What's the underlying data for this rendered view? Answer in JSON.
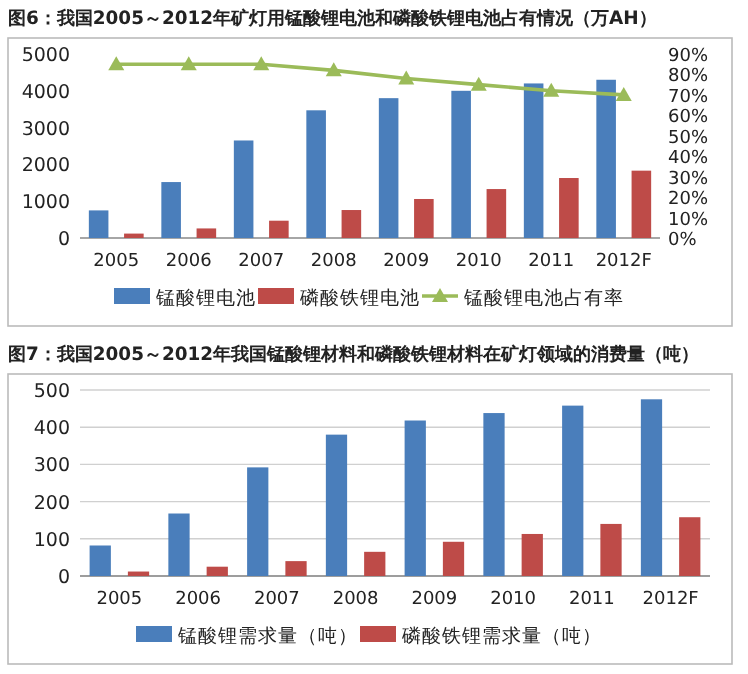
{
  "chart_data": [
    {
      "type": "bar",
      "title": "图6：我国2005～2012年矿灯用锰酸锂电池和磷酸铁锂电池占有情况（万AH）",
      "categories": [
        "2005",
        "2006",
        "2007",
        "2008",
        "2009",
        "2010",
        "2011",
        "2012F"
      ],
      "series": [
        {
          "name": "锰酸锂电池",
          "color": "#4a7ebb",
          "values": [
            750,
            1520,
            2650,
            3470,
            3800,
            4000,
            4200,
            4300
          ]
        },
        {
          "name": "磷酸铁锂电池",
          "color": "#be4b48",
          "values": [
            120,
            260,
            470,
            760,
            1060,
            1330,
            1630,
            1830
          ]
        },
        {
          "name": "锰酸锂电池占有率",
          "type": "line",
          "axis": "y2",
          "color": "#9bbb59",
          "values": [
            85,
            85,
            85,
            82,
            78,
            75,
            72,
            70
          ]
        }
      ],
      "ylim": [
        0,
        5000
      ],
      "yticks": [
        0,
        1000,
        2000,
        3000,
        4000,
        5000
      ],
      "y2lim": [
        0,
        90
      ],
      "y2ticks": [
        {
          "value": 0,
          "label": "0%"
        },
        {
          "value": 10,
          "label": "10%"
        },
        {
          "value": 20,
          "label": "20%"
        },
        {
          "value": 30,
          "label": "30%"
        },
        {
          "value": 40,
          "label": "40%"
        },
        {
          "value": 50,
          "label": "50%"
        },
        {
          "value": 60,
          "label": "60%"
        },
        {
          "value": 70,
          "label": "70%"
        },
        {
          "value": 80,
          "label": "80%"
        },
        {
          "value": 90,
          "label": "90%"
        }
      ],
      "marker": "triangle",
      "legend": "bottom"
    },
    {
      "type": "bar",
      "title": "图7：我国2005～2012年我国锰酸锂材料和磷酸铁锂材料在矿灯领域的消费量（吨）",
      "categories": [
        "2005",
        "2006",
        "2007",
        "2008",
        "2009",
        "2010",
        "2011",
        "2012F"
      ],
      "series": [
        {
          "name": "锰酸锂需求量（吨）",
          "color": "#4a7ebb",
          "values": [
            82,
            168,
            292,
            380,
            418,
            438,
            458,
            475
          ]
        },
        {
          "name": "磷酸铁锂需求量（吨）",
          "color": "#be4b48",
          "values": [
            12,
            25,
            40,
            65,
            92,
            113,
            140,
            158
          ]
        }
      ],
      "ylim": [
        0,
        500
      ],
      "yticks": [
        0,
        100,
        200,
        300,
        400,
        500
      ],
      "grid": "y",
      "legend": "bottom"
    }
  ]
}
